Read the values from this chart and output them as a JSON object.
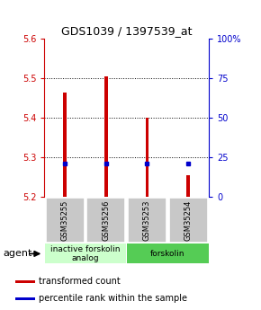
{
  "title": "GDS1039 / 1397539_at",
  "samples": [
    "GSM35255",
    "GSM35256",
    "GSM35253",
    "GSM35254"
  ],
  "bar_values": [
    5.465,
    5.505,
    5.4,
    5.255
  ],
  "percentile_values": [
    5.285,
    5.285,
    5.285,
    5.285
  ],
  "bar_bottom": 5.2,
  "ylim_left": [
    5.2,
    5.6
  ],
  "ylim_right": [
    0,
    100
  ],
  "yticks_left": [
    5.2,
    5.3,
    5.4,
    5.5,
    5.6
  ],
  "yticks_right": [
    0,
    25,
    50,
    75,
    100
  ],
  "ytick_labels_right": [
    "0",
    "25",
    "50",
    "75",
    "100%"
  ],
  "bar_color": "#cc0000",
  "percentile_color": "#0000cc",
  "bar_width": 0.08,
  "groups": [
    {
      "label": "inactive forskolin\nanalog",
      "span": [
        1,
        2
      ],
      "color": "#ccffcc"
    },
    {
      "label": "forskolin",
      "span": [
        3,
        4
      ],
      "color": "#55cc55"
    }
  ],
  "agent_label": "agent",
  "legend_items": [
    {
      "color": "#cc0000",
      "label": "transformed count"
    },
    {
      "color": "#0000cc",
      "label": "percentile rank within the sample"
    }
  ],
  "background_color": "#ffffff",
  "label_area_color": "#c8c8c8",
  "title_fontsize": 9,
  "tick_fontsize": 7,
  "sample_fontsize": 6,
  "group_fontsize": 6.5,
  "legend_fontsize": 7,
  "agent_fontsize": 8
}
